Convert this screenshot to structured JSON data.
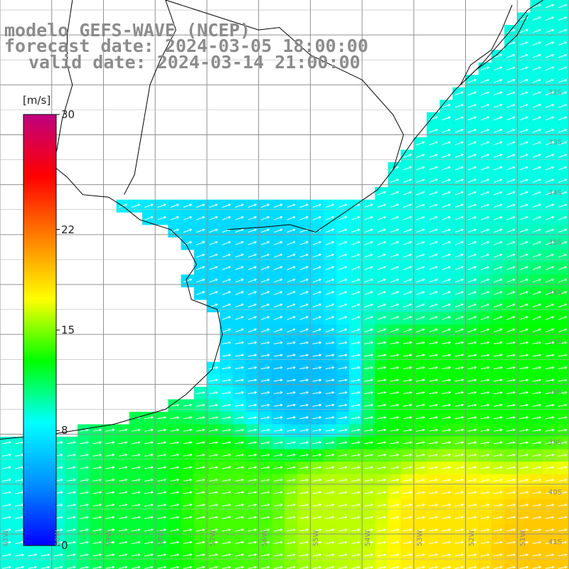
{
  "title": {
    "line1": "modelo GEFS-WAVE (NCEP)",
    "line2": "forecast date: 2024-03-05 18:00:00",
    "line3": "valid date: 2024-03-14 21:00:00"
  },
  "colorbar": {
    "unit": "[m/s]",
    "ticks": [
      {
        "label": "30",
        "value": 30
      },
      {
        "label": "22",
        "value": 22
      },
      {
        "label": "15",
        "value": 15
      },
      {
        "label": "8",
        "value": 8
      },
      {
        "label": "0",
        "value": 0
      }
    ],
    "range": [
      0,
      30
    ],
    "colors": [
      "#0000ff",
      "#0090ff",
      "#00ffff",
      "#00ff00",
      "#ffff00",
      "#ff8000",
      "#ff0000",
      "#c00080"
    ]
  },
  "map": {
    "lon_range": [
      -61.0,
      -50.0
    ],
    "lat_range": [
      -41.7,
      -30.3
    ],
    "gridlines": true,
    "lat_labels": [
      {
        "label": "32S",
        "lat": -32
      },
      {
        "label": "33S",
        "lat": -33
      },
      {
        "label": "34S",
        "lat": -34
      },
      {
        "label": "35S",
        "lat": -35
      },
      {
        "label": "36S",
        "lat": -36
      },
      {
        "label": "37S",
        "lat": -37
      },
      {
        "label": "38S",
        "lat": -38
      },
      {
        "label": "39S",
        "lat": -39
      },
      {
        "label": "40S",
        "lat": -40
      },
      {
        "label": "41S",
        "lat": -41
      }
    ],
    "lon_labels": [
      {
        "label": "61W",
        "lon": -61
      },
      {
        "label": "60W",
        "lon": -60
      },
      {
        "label": "59W",
        "lon": -59
      },
      {
        "label": "58W",
        "lon": -58
      },
      {
        "label": "57W",
        "lon": -57
      },
      {
        "label": "56W",
        "lon": -56
      },
      {
        "label": "55W",
        "lon": -55
      },
      {
        "label": "54W",
        "lon": -54
      },
      {
        "label": "53W",
        "lon": -53
      },
      {
        "label": "52W",
        "lon": -52
      },
      {
        "label": "51W",
        "lon": -51
      }
    ],
    "coastline": [
      [
        -59.6,
        -30.3
      ],
      [
        -59.7,
        -31.0
      ],
      [
        -59.7,
        -31.6
      ],
      [
        -59.6,
        -32.0
      ],
      [
        -59.8,
        -32.7
      ],
      [
        -59.9,
        -33.3
      ],
      [
        -60.0,
        -33.6
      ],
      [
        -59.7,
        -33.85
      ],
      [
        -59.4,
        -34.2
      ],
      [
        -58.9,
        -34.25
      ],
      [
        -58.6,
        -34.45
      ],
      [
        -58.3,
        -34.7
      ],
      [
        -57.7,
        -34.9
      ],
      [
        -57.4,
        -35.2
      ],
      [
        -57.2,
        -35.6
      ],
      [
        -57.4,
        -35.9
      ],
      [
        -57.3,
        -36.3
      ],
      [
        -56.8,
        -36.5
      ],
      [
        -56.7,
        -37.0
      ],
      [
        -56.9,
        -37.7
      ],
      [
        -57.4,
        -38.2
      ],
      [
        -57.8,
        -38.5
      ],
      [
        -58.8,
        -38.8
      ],
      [
        -60.0,
        -39.0
      ],
      [
        -61.0,
        -39.1
      ]
    ],
    "coastline_east": [
      [
        -56.6,
        -34.9
      ],
      [
        -55.9,
        -34.85
      ],
      [
        -55.4,
        -34.8
      ],
      [
        -54.9,
        -34.95
      ],
      [
        -54.4,
        -34.6
      ],
      [
        -53.7,
        -34.1
      ],
      [
        -53.4,
        -33.7
      ],
      [
        -53.0,
        -33.1
      ],
      [
        -52.6,
        -32.6
      ],
      [
        -52.2,
        -32.1
      ],
      [
        -51.7,
        -31.6
      ],
      [
        -51.2,
        -31.0
      ],
      [
        -50.8,
        -30.5
      ],
      [
        -50.5,
        -30.3
      ]
    ],
    "inland_border": [
      [
        -57.8,
        -30.3
      ],
      [
        -57.6,
        -30.9
      ],
      [
        -57.9,
        -31.5
      ],
      [
        -58.1,
        -32.0
      ],
      [
        -58.2,
        -32.6
      ],
      [
        -58.3,
        -33.2
      ],
      [
        -58.4,
        -33.8
      ],
      [
        -58.6,
        -34.2
      ]
    ],
    "uruguay_border": [
      [
        -57.8,
        -30.3
      ],
      [
        -56.9,
        -30.6
      ],
      [
        -56.0,
        -30.9
      ],
      [
        -55.6,
        -30.85
      ],
      [
        -55.0,
        -31.4
      ],
      [
        -54.0,
        -31.9
      ],
      [
        -53.4,
        -32.6
      ],
      [
        -53.2,
        -33.0
      ],
      [
        -53.4,
        -33.7
      ]
    ],
    "lagoon": [
      [
        -51.1,
        -30.4
      ],
      [
        -51.3,
        -30.9
      ],
      [
        -51.5,
        -31.3
      ],
      [
        -51.9,
        -31.6
      ],
      [
        -52.1,
        -32.0
      ],
      [
        -51.8,
        -31.7
      ],
      [
        -51.4,
        -31.4
      ],
      [
        -51.0,
        -31.0
      ],
      [
        -50.8,
        -30.6
      ]
    ],
    "wind_field_note_free": true,
    "wind_speed_samples": [
      {
        "lon": -60.5,
        "lat": -40.5,
        "speed": 9
      },
      {
        "lon": -58.5,
        "lat": -40.5,
        "speed": 12
      },
      {
        "lon": -56.5,
        "lat": -40.5,
        "speed": 14
      },
      {
        "lon": -54.5,
        "lat": -40.5,
        "speed": 16
      },
      {
        "lon": -52.5,
        "lat": -40.8,
        "speed": 18
      },
      {
        "lon": -50.5,
        "lat": -41.2,
        "speed": 19
      },
      {
        "lon": -55.0,
        "lat": -38.0,
        "speed": 6
      },
      {
        "lon": -53.0,
        "lat": -38.0,
        "speed": 13
      },
      {
        "lon": -51.0,
        "lat": -38.0,
        "speed": 13
      },
      {
        "lon": -56.0,
        "lat": -35.8,
        "speed": 7
      },
      {
        "lon": -53.0,
        "lat": -35.5,
        "speed": 9
      },
      {
        "lon": -51.0,
        "lat": -33.0,
        "speed": 9
      }
    ]
  }
}
